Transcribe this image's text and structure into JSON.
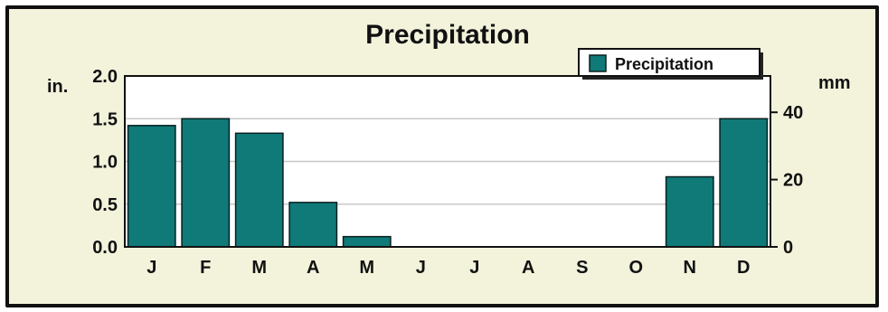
{
  "chart_data": {
    "type": "bar",
    "title": "Precipitation",
    "categories": [
      "J",
      "F",
      "M",
      "A",
      "M",
      "J",
      "J",
      "A",
      "S",
      "O",
      "N",
      "D"
    ],
    "series": [
      {
        "name": "Precipitation",
        "values": [
          1.42,
          1.5,
          1.33,
          0.52,
          0.12,
          0,
          0,
          0,
          0,
          0,
          0.82,
          1.5
        ]
      }
    ],
    "ylim": [
      0,
      2.0
    ],
    "left_axis": {
      "unit": "in.",
      "ticks": [
        "0.0",
        "0.5",
        "1.0",
        "1.5",
        "2.0"
      ]
    },
    "right_axis": {
      "unit": "mm",
      "ticks": [
        "0",
        "20",
        "40"
      ],
      "range": [
        0,
        50.8
      ]
    },
    "grid": true,
    "legend": {
      "position": "top-right",
      "label": "Precipitation"
    },
    "colors": {
      "bar": "#0f7a78",
      "bar_edge": "#0a1f1f",
      "background": "#f3f3dc",
      "plot": "#ffffff",
      "grid": "#c8c8c8"
    }
  }
}
